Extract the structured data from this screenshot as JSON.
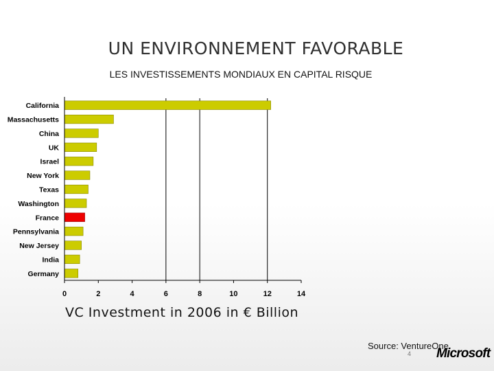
{
  "slide": {
    "title": "UN ENVIRONNEMENT FAVORABLE",
    "source": "Source: VentureOne",
    "page_number": "4",
    "logo_text": "Microsoft"
  },
  "colors": {
    "bar": "#cccc00",
    "highlight": "#ee0000",
    "gridline": "#000000"
  },
  "chart_data": {
    "type": "bar",
    "orientation": "horizontal",
    "title": "LES INVESTISSEMENTS MONDIAUX EN CAPITAL RISQUE",
    "xlabel": "VC Investment in 2006 in € Billion",
    "ylabel": "",
    "categories": [
      "California",
      "Massachusetts",
      "China",
      "UK",
      "Israel",
      "New York",
      "Texas",
      "Washington",
      "France",
      "Pennsylvania",
      "New Jersey",
      "India",
      "Germany"
    ],
    "values": [
      12.2,
      2.9,
      2.0,
      1.9,
      1.7,
      1.5,
      1.4,
      1.3,
      1.2,
      1.1,
      1.0,
      0.9,
      0.8
    ],
    "highlight": "France",
    "xlim": [
      0,
      14
    ],
    "xticks": [
      0,
      2,
      4,
      6,
      8,
      10,
      12,
      14
    ],
    "gridlines": [
      6,
      8,
      12
    ],
    "legend": "none"
  }
}
